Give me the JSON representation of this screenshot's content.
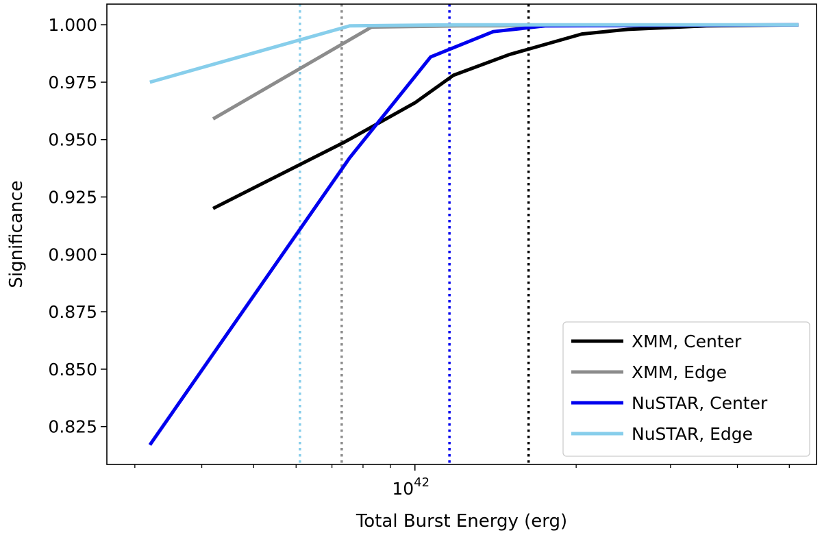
{
  "chart_data": {
    "type": "line",
    "title": "",
    "xlabel": "Total Burst Energy (erg)",
    "ylabel": "Significance",
    "xscale": "log",
    "xlim": [
      2.66e+41,
      5.62e+42
    ],
    "ylim": [
      0.8085,
      1.009
    ],
    "grid": false,
    "legend_position": "bottom-right",
    "x_tick_labels": [
      {
        "value": 1e+42,
        "base": "10",
        "exponent": "42"
      }
    ],
    "y_ticks": [
      {
        "value": 0.825,
        "label": "0.825"
      },
      {
        "value": 0.85,
        "label": "0.850"
      },
      {
        "value": 0.875,
        "label": "0.875"
      },
      {
        "value": 0.9,
        "label": "0.900"
      },
      {
        "value": 0.925,
        "label": "0.925"
      },
      {
        "value": 0.95,
        "label": "0.950"
      },
      {
        "value": 0.975,
        "label": "0.975"
      },
      {
        "value": 1.0,
        "label": "1.000"
      }
    ],
    "minor_x_ticks": [
      3e+41,
      4e+41,
      5e+41,
      6e+41,
      7e+41,
      8e+41,
      9e+41,
      2e+42,
      3e+42,
      4e+42,
      5e+42
    ],
    "series": [
      {
        "name": "XMM, Center",
        "color": "#000000",
        "points": [
          [
            4.2e+41,
            0.92
          ],
          [
            7.4e+41,
            0.949
          ],
          [
            1e+42,
            0.966
          ],
          [
            1.18e+42,
            0.978
          ],
          [
            1.5e+42,
            0.987
          ],
          [
            2.05e+42,
            0.996
          ],
          [
            2.5e+42,
            0.998
          ],
          [
            3.5e+42,
            0.9995
          ],
          [
            5.2e+42,
            1.0
          ]
        ]
      },
      {
        "name": "XMM, Edge",
        "color": "#8c8c8c",
        "points": [
          [
            4.2e+41,
            0.959
          ],
          [
            8.3e+41,
            0.999
          ],
          [
            1.2e+42,
            0.9995
          ],
          [
            5.2e+42,
            1.0
          ]
        ]
      },
      {
        "name": "NuSTAR, Center",
        "color": "#0000ee",
        "points": [
          [
            3.2e+41,
            0.817
          ],
          [
            7.55e+41,
            0.942
          ],
          [
            1.07e+42,
            0.986
          ],
          [
            1.4e+42,
            0.997
          ],
          [
            1.75e+42,
            0.9995
          ],
          [
            5.2e+42,
            1.0
          ]
        ]
      },
      {
        "name": "NuSTAR, Edge",
        "color": "#87ceeb",
        "points": [
          [
            3.2e+41,
            0.975
          ],
          [
            7.55e+41,
            0.9995
          ],
          [
            1.2e+42,
            1.0
          ],
          [
            5.2e+42,
            1.0
          ]
        ]
      }
    ],
    "vlines": [
      {
        "x": 6.1e+41,
        "color": "#87ceeb",
        "style": "dotted"
      },
      {
        "x": 7.3e+41,
        "color": "#8c8c8c",
        "style": "dotted"
      },
      {
        "x": 1.16e+42,
        "color": "#0000ee",
        "style": "dotted"
      },
      {
        "x": 1.63e+42,
        "color": "#000000",
        "style": "dotted"
      }
    ]
  }
}
